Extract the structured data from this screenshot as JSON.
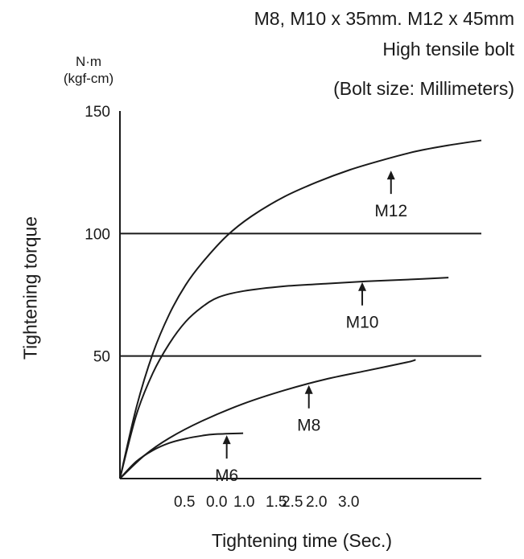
{
  "header": {
    "line1": "M8, M10 x 35mm. M12 x 45mm",
    "line2": "High tensile bolt",
    "line3": "(Bolt size: Millimeters)"
  },
  "unit_line1": "N·m",
  "unit_line2": "(kgf-cm)",
  "chart_data": {
    "type": "line",
    "title": "M8, M10 x 35mm. M12 x 45mm High tensile bolt",
    "subtitle": "(Bolt size: Millimeters)",
    "xlabel": "Tightening time (Sec.)",
    "ylabel": "Tightening torque",
    "ylim": [
      0,
      150
    ],
    "xlim": [
      0,
      4.4
    ],
    "yticks": [
      "150",
      "100",
      "50"
    ],
    "xtick_labels": [
      "0.5",
      "0.0",
      "1.0",
      "1.5",
      "2.5",
      "2.0",
      "3.0"
    ],
    "gridlines_y": [
      50,
      100
    ],
    "series": [
      {
        "name": "M6",
        "x": [
          0,
          0.2,
          0.4,
          0.6,
          0.8,
          1.0,
          1.15,
          1.5
        ],
        "y": [
          0,
          7,
          11.5,
          14.5,
          16.3,
          17.5,
          18.1,
          18.5
        ]
      },
      {
        "name": "M8",
        "x": [
          0,
          0.3,
          0.6,
          1.0,
          1.5,
          2.0,
          2.5,
          3.0,
          3.5,
          3.6
        ],
        "y": [
          0,
          9.5,
          16.5,
          23.5,
          30.5,
          36,
          40.5,
          44,
          47.5,
          48.5
        ]
      },
      {
        "name": "M10",
        "x": [
          0,
          0.2,
          0.4,
          0.6,
          0.8,
          1.0,
          1.2,
          1.5,
          2.0,
          2.5,
          3.0,
          3.5,
          4.0
        ],
        "y": [
          0,
          26,
          43,
          55,
          64,
          70,
          74,
          76.5,
          78.5,
          79.5,
          80.5,
          81.2,
          82
        ]
      },
      {
        "name": "M12",
        "x": [
          0,
          0.2,
          0.4,
          0.6,
          0.8,
          1.0,
          1.3,
          1.6,
          2.0,
          2.4,
          2.8,
          3.2,
          3.6,
          4.0,
          4.4
        ],
        "y": [
          0,
          29,
          51,
          67,
          79,
          88,
          99,
          107,
          115,
          121,
          126,
          130,
          133.5,
          136,
          138
        ]
      }
    ],
    "annotations": [
      {
        "text": "M12",
        "x": 3.3,
        "y": 126
      },
      {
        "text": "M10",
        "x": 2.95,
        "y": 80.5
      },
      {
        "text": "M8",
        "x": 2.3,
        "y": 38.5
      },
      {
        "text": "M6",
        "x": 1.3,
        "y": 18
      }
    ]
  },
  "colors": {
    "line": "#1a1a1a",
    "background": "#ffffff"
  }
}
